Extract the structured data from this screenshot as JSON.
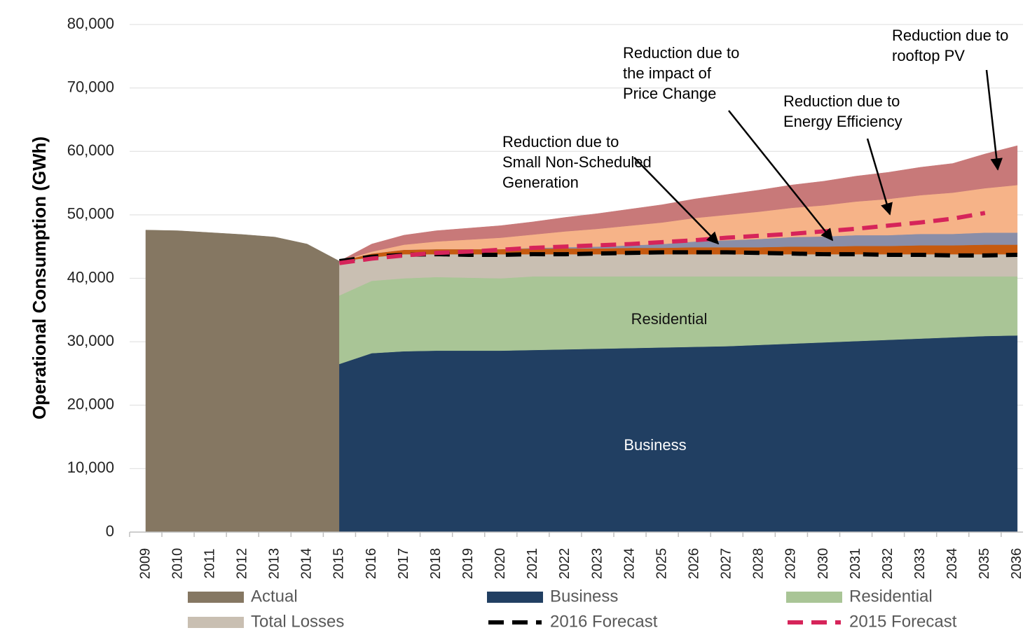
{
  "chart_data": {
    "type": "area",
    "y_axis_label": "Operational Consumption (GWh)",
    "categories": [
      "2009",
      "2010",
      "2011",
      "2012",
      "2013",
      "2014",
      "2015",
      "2016",
      "2017",
      "2018",
      "2019",
      "2020",
      "2021",
      "2022",
      "2023",
      "2024",
      "2025",
      "2026",
      "2027",
      "2028",
      "2029",
      "2030",
      "2031",
      "2032",
      "2033",
      "2034",
      "2035",
      "2036"
    ],
    "ylim": [
      0,
      80000
    ],
    "yticks": [
      0,
      {
        "value": 10000,
        "label": "10,000"
      },
      {
        "value": 20000,
        "label": "20,000"
      },
      {
        "value": 30000,
        "label": "30,000"
      },
      {
        "value": 40000,
        "label": "40,000"
      },
      {
        "value": 50000,
        "label": "50,000"
      },
      {
        "value": 60000,
        "label": "60,000"
      },
      {
        "value": 70000,
        "label": "70,000"
      },
      {
        "value": 80000,
        "label": "80,000"
      }
    ],
    "grid": true,
    "series": [
      {
        "name": "Actual",
        "color": "#857762",
        "values": [
          47600,
          47500,
          47200,
          46900,
          46500,
          45400,
          42700,
          null,
          null,
          null,
          null,
          null,
          null,
          null,
          null,
          null,
          null,
          null,
          null,
          null,
          null,
          null,
          null,
          null,
          null,
          null,
          null,
          null
        ]
      },
      {
        "name": "Business",
        "color": "#213f62",
        "stacked": true,
        "values": [
          null,
          null,
          null,
          null,
          null,
          null,
          26500,
          28200,
          28500,
          28600,
          28600,
          28600,
          28700,
          28800,
          28900,
          29000,
          29100,
          29200,
          29300,
          29500,
          29700,
          29900,
          30100,
          30300,
          30500,
          30700,
          30900,
          31000
        ]
      },
      {
        "name": "Residential",
        "color": "#a9c596",
        "stacked": true,
        "values": [
          null,
          null,
          null,
          null,
          null,
          null,
          10800,
          11400,
          11500,
          11600,
          11500,
          11400,
          11600,
          11500,
          11400,
          11300,
          11200,
          11100,
          11000,
          10800,
          10600,
          10400,
          10200,
          10000,
          9800,
          9600,
          9400,
          9300
        ]
      },
      {
        "name": "Total Losses",
        "color": "#c9bfb2",
        "stacked": true,
        "values": [
          null,
          null,
          null,
          null,
          null,
          null,
          5400,
          3700,
          3800,
          3600,
          3700,
          3800,
          3500,
          3500,
          3500,
          3500,
          3500,
          3500,
          3500,
          3500,
          3500,
          3500,
          3500,
          3500,
          3500,
          3500,
          3500,
          3500
        ]
      },
      {
        "color": "#c65a10",
        "stacked": true,
        "values": [
          null,
          null,
          null,
          null,
          null,
          null,
          0,
          600,
          700,
          800,
          800,
          800,
          900,
          900,
          900,
          1000,
          1000,
          1100,
          1100,
          1100,
          1200,
          1200,
          1300,
          1300,
          1400,
          1400,
          1500,
          1500
        ]
      },
      {
        "color": "#8a8ea8",
        "stacked": true,
        "values": [
          null,
          null,
          null,
          null,
          null,
          null,
          0,
          0,
          0,
          0,
          0,
          0,
          100,
          200,
          300,
          400,
          600,
          900,
          1100,
          1300,
          1500,
          1600,
          1700,
          1700,
          1800,
          1800,
          1900,
          1900
        ]
      },
      {
        "color": "#f6b388",
        "stacked": true,
        "values": [
          null,
          null,
          null,
          null,
          null,
          null,
          0,
          300,
          800,
          1200,
          1500,
          1800,
          2100,
          2500,
          2800,
          3100,
          3400,
          3700,
          4000,
          4300,
          4600,
          4900,
          5300,
          5700,
          6100,
          6500,
          7000,
          7500
        ]
      },
      {
        "color": "#c87979",
        "stacked": true,
        "values": [
          null,
          null,
          null,
          null,
          null,
          null,
          0,
          1200,
          1500,
          1700,
          1800,
          1900,
          2000,
          2200,
          2400,
          2600,
          2800,
          3000,
          3200,
          3400,
          3600,
          3800,
          4000,
          4200,
          4400,
          4600,
          5400,
          6200
        ]
      },
      {
        "name": "2016 Forecast",
        "color": "#000000",
        "line_style": "dashed",
        "values": [
          null,
          null,
          null,
          null,
          null,
          null,
          42700,
          43400,
          43700,
          43800,
          43700,
          43700,
          43800,
          43800,
          43900,
          44000,
          44100,
          44100,
          44100,
          44000,
          43900,
          43800,
          43800,
          43700,
          43700,
          43600,
          43600,
          43700
        ]
      },
      {
        "name": "2015 Forecast",
        "color": "#d6245a",
        "line_style": "dashed",
        "values": [
          null,
          null,
          null,
          null,
          null,
          null,
          42400,
          43100,
          43600,
          44000,
          44200,
          44500,
          44800,
          45000,
          45200,
          45400,
          45700,
          46000,
          46400,
          46700,
          47000,
          47400,
          47800,
          48300,
          48800,
          49400,
          50300,
          null
        ]
      }
    ],
    "annotations": [
      {
        "lines": [
          "Reduction due to",
          "Small Non-Scheduled",
          "Generation"
        ]
      },
      {
        "lines": [
          "Reduction due to",
          "the impact of",
          "Price Change"
        ]
      },
      {
        "lines": [
          "Reduction due to",
          "Energy Efficiency"
        ]
      },
      {
        "lines": [
          "Reduction due to",
          "rooftop PV"
        ]
      }
    ]
  }
}
